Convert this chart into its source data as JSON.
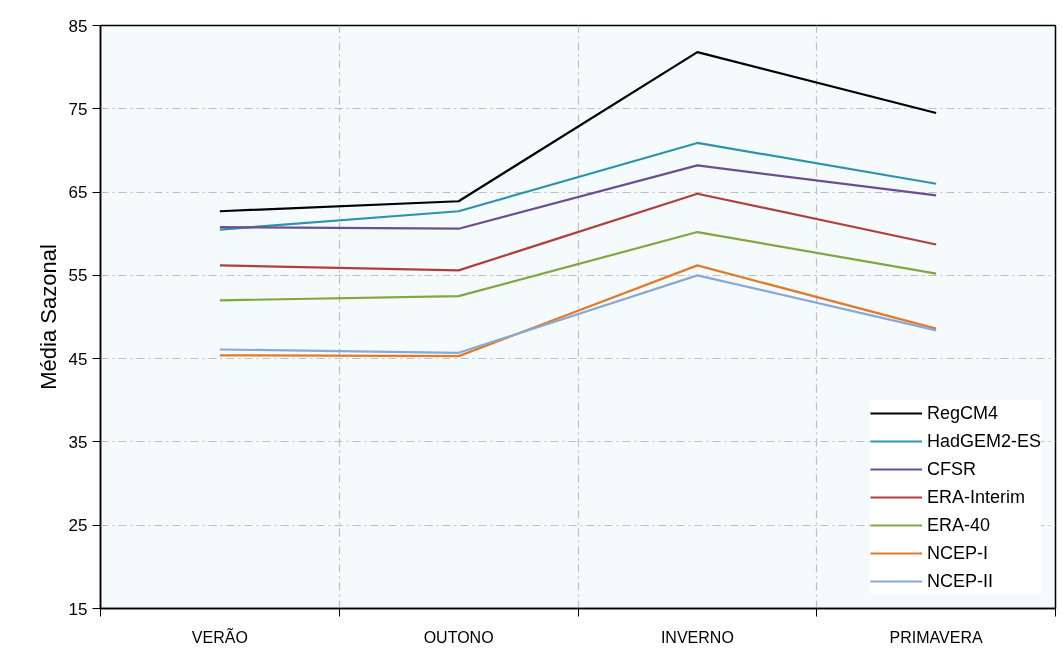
{
  "chart_data": {
    "type": "line",
    "ylabel": "Média Sazonal",
    "categories": [
      "VERÃO",
      "OUTONO",
      "INVERNO",
      "PRIMAVERA"
    ],
    "ylim": [
      15,
      85
    ],
    "yticks": [
      15,
      25,
      35,
      45,
      55,
      65,
      75,
      85
    ],
    "grid": true,
    "legend": "bottom right",
    "marker": "none",
    "line_style": "solid",
    "series": [
      {
        "name": "RegCM4",
        "color": "#000000",
        "values": [
          62.7,
          63.9,
          81.8,
          74.5
        ]
      },
      {
        "name": "HadGEM2-ES",
        "color": "#2e93ac",
        "values": [
          60.5,
          62.7,
          70.9,
          66.0
        ]
      },
      {
        "name": "CFSR",
        "color": "#6d4e92",
        "values": [
          60.8,
          60.6,
          68.2,
          64.6
        ]
      },
      {
        "name": "ERA-Interim",
        "color": "#b04040",
        "values": [
          56.2,
          55.6,
          64.8,
          58.7
        ]
      },
      {
        "name": "ERA-40",
        "color": "#7fa83f",
        "values": [
          52.0,
          52.5,
          60.2,
          55.2
        ]
      },
      {
        "name": "NCEP-I",
        "color": "#e07b2b",
        "values": [
          45.4,
          45.3,
          56.2,
          48.6
        ]
      },
      {
        "name": "NCEP-II",
        "color": "#8aa8d6",
        "values": [
          46.1,
          45.7,
          55.0,
          48.4
        ]
      }
    ]
  }
}
